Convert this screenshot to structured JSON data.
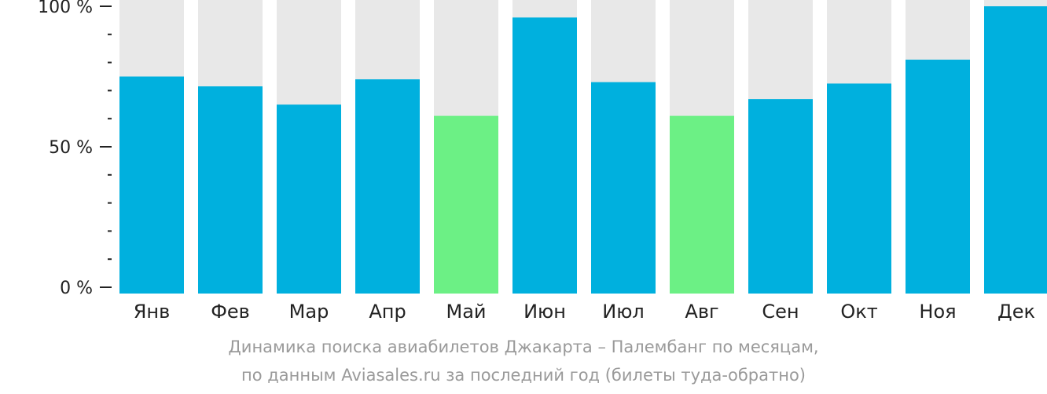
{
  "chart_data": {
    "type": "bar",
    "categories": [
      "Янв",
      "Фев",
      "Мар",
      "Апр",
      "Май",
      "Июн",
      "Июл",
      "Авг",
      "Сен",
      "Окт",
      "Ноя",
      "Дек"
    ],
    "values": [
      75,
      71.5,
      65,
      74,
      61,
      96,
      73,
      61,
      67,
      72.5,
      81,
      100
    ],
    "highlighted": [
      false,
      false,
      false,
      false,
      true,
      false,
      false,
      true,
      false,
      false,
      false,
      false
    ],
    "ylim": [
      0,
      100
    ],
    "yticks": [
      {
        "value": 0,
        "label": "0 %"
      },
      {
        "value": 50,
        "label": "50 %"
      },
      {
        "value": 100,
        "label": "100 %"
      }
    ],
    "minor_tick_step": 10,
    "colors": {
      "bar": "#00b0de",
      "highlight": "#6cf085",
      "background_bar": "#e8e8e8",
      "axis": "#222222",
      "caption": "#9a9a9a"
    }
  },
  "caption": {
    "line1": "Динамика поиска авиабилетов Джакарта – Палембанг по месяцам,",
    "line2": "по данным Aviasales.ru за последний год (билеты туда-обратно)"
  }
}
